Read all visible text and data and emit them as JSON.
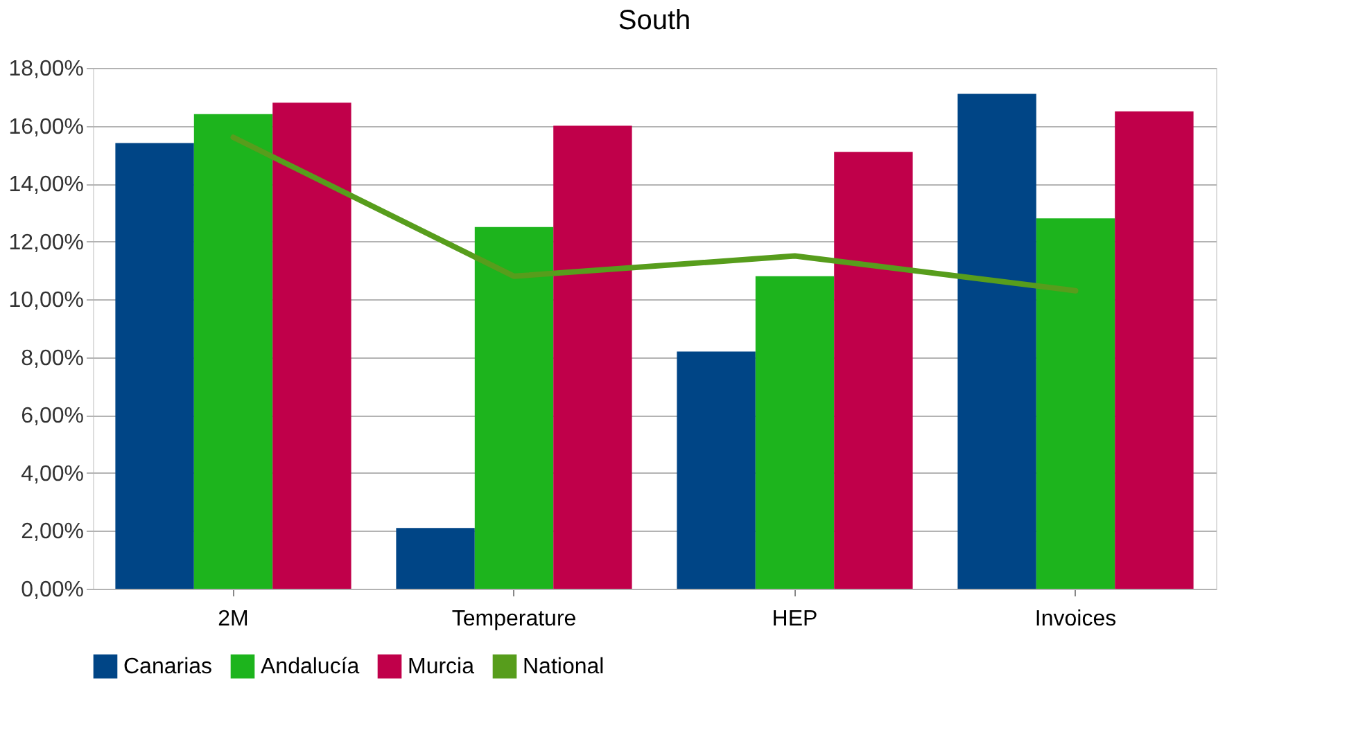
{
  "chart_data": {
    "type": "bar",
    "title": "South",
    "categories": [
      "2M",
      "Temperature",
      "HEP",
      "Invoices"
    ],
    "series": [
      {
        "name": "Canarias",
        "color": "#004586",
        "values": [
          15.4,
          2.1,
          8.2,
          17.1
        ]
      },
      {
        "name": "Andalucía",
        "color": "#1db41d",
        "values": [
          16.4,
          12.5,
          10.8,
          12.8
        ]
      },
      {
        "name": "Murcia",
        "color": "#c0004a",
        "values": [
          16.8,
          16.0,
          15.1,
          16.5
        ]
      },
      {
        "name": "National",
        "color": "#579d1c",
        "type": "line",
        "values": [
          15.6,
          10.8,
          11.5,
          10.3
        ]
      }
    ],
    "ylim": [
      0,
      18
    ],
    "yticks": [
      {
        "value": 0,
        "label": "0,00%"
      },
      {
        "value": 2,
        "label": "2,00%"
      },
      {
        "value": 4,
        "label": "4,00%"
      },
      {
        "value": 6,
        "label": "6,00%"
      },
      {
        "value": 8,
        "label": "8,00%"
      },
      {
        "value": 10,
        "label": "10,00%"
      },
      {
        "value": 12,
        "label": "12,00%"
      },
      {
        "value": 14,
        "label": "14,00%"
      },
      {
        "value": 16,
        "label": "16,00%"
      },
      {
        "value": 18,
        "label": "18,00%"
      }
    ],
    "grid": "y",
    "legend": "bottom",
    "marker": "none"
  }
}
